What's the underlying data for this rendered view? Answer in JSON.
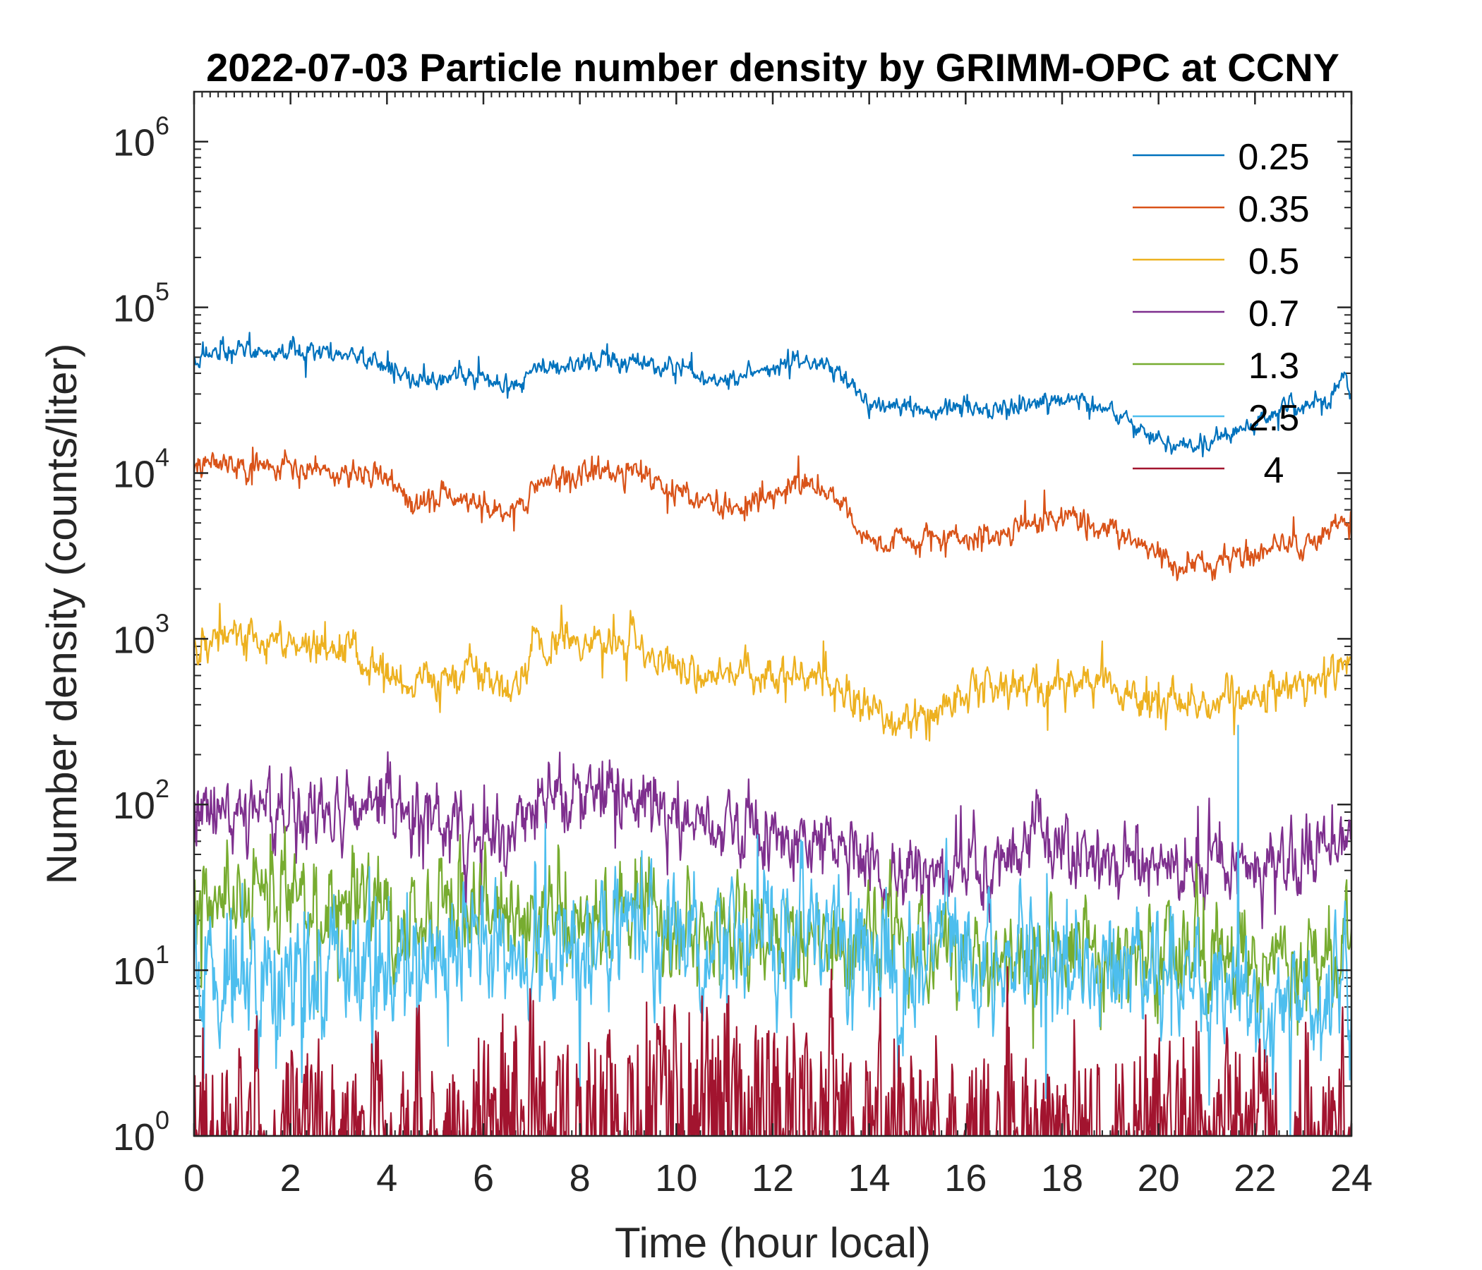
{
  "chart_data": {
    "type": "line",
    "title": "2022-07-03 Particle number density by GRIMM-OPC at CCNY",
    "xlabel": "Time (hour local)",
    "ylabel": "Number density (counts/liter)",
    "xlim": [
      0,
      24
    ],
    "ylim": [
      1,
      2000000
    ],
    "yscale": "log",
    "x_ticks": [
      "0",
      "2",
      "4",
      "6",
      "8",
      "10",
      "12",
      "14",
      "16",
      "18",
      "20",
      "22",
      "24"
    ],
    "y_ticks": [
      {
        "base": "10",
        "exp": "0"
      },
      {
        "base": "10",
        "exp": "1"
      },
      {
        "base": "10",
        "exp": "2"
      },
      {
        "base": "10",
        "exp": "3"
      },
      {
        "base": "10",
        "exp": "4"
      },
      {
        "base": "10",
        "exp": "5"
      },
      {
        "base": "10",
        "exp": "6"
      }
    ],
    "legend_position": "top-right",
    "series": [
      {
        "name": "0.25",
        "color": "#0072BD",
        "noise_dex": 0.03,
        "spike_dex": 0.1,
        "x": [
          0,
          0.5,
          1,
          2,
          3,
          3.8,
          4.5,
          5.5,
          6,
          6.5,
          6.9,
          7,
          7.5,
          8,
          8.5,
          9,
          10,
          10.5,
          11,
          12,
          12.5,
          13,
          13.5,
          14,
          15,
          16,
          17,
          18,
          19,
          19.5,
          20,
          20.5,
          21,
          21.5,
          22,
          22.5,
          23,
          23.5,
          23.8,
          24
        ],
        "y": [
          50000,
          54000,
          56000,
          53000,
          52000,
          48000,
          37000,
          38000,
          36000,
          33000,
          37000,
          42000,
          44000,
          46000,
          48000,
          47000,
          43000,
          40000,
          38000,
          42000,
          47000,
          45000,
          38000,
          26000,
          24000,
          24000,
          25000,
          28000,
          24000,
          20000,
          16000,
          14000,
          15000,
          17000,
          20000,
          24000,
          25000,
          28000,
          40000,
          28000
        ]
      },
      {
        "name": "0.35",
        "color": "#D95319",
        "noise_dex": 0.04,
        "spike_dex": 0.15,
        "x": [
          0,
          0.5,
          1,
          2,
          3,
          4,
          4.5,
          5.5,
          6,
          6.5,
          6.9,
          7,
          7.5,
          8,
          8.5,
          9,
          10,
          10.5,
          11,
          12,
          12.5,
          13,
          13.5,
          14,
          15,
          16,
          17,
          18,
          19,
          19.5,
          20,
          20.5,
          21,
          21.5,
          22,
          22.5,
          23,
          23.5,
          23.8,
          24
        ],
        "y": [
          11000,
          11500,
          11000,
          10500,
          10000,
          9500,
          6500,
          7000,
          6500,
          5500,
          6500,
          8500,
          9500,
          10000,
          11000,
          10500,
          8000,
          7000,
          6000,
          7000,
          8500,
          8000,
          6000,
          4000,
          4000,
          4000,
          4500,
          5500,
          4500,
          3800,
          3200,
          2800,
          2800,
          3000,
          3200,
          3800,
          3600,
          4000,
          5500,
          4000
        ]
      },
      {
        "name": "0.5",
        "color": "#EDB120",
        "noise_dex": 0.06,
        "spike_dex": 0.2,
        "x": [
          0,
          1,
          2,
          3,
          4,
          4.5,
          5,
          6,
          6.5,
          6.9,
          7,
          7.5,
          8,
          8.5,
          9,
          10,
          10.5,
          11,
          12,
          12.5,
          13,
          13.5,
          14,
          14.5,
          15,
          16,
          17,
          18,
          19,
          20,
          20.5,
          21,
          21.5,
          22,
          22.5,
          23,
          23.5,
          24
        ],
        "y": [
          1000,
          1050,
          950,
          900,
          700,
          500,
          550,
          650,
          500,
          550,
          850,
          900,
          950,
          1050,
          950,
          700,
          600,
          550,
          600,
          650,
          600,
          500,
          400,
          320,
          340,
          450,
          500,
          550,
          500,
          450,
          370,
          390,
          420,
          450,
          500,
          480,
          600,
          700
        ]
      },
      {
        "name": "0.7",
        "color": "#7E2F8E",
        "noise_dex": 0.12,
        "spike_dex": 0.35,
        "x": [
          0,
          2,
          4,
          5,
          6,
          6.5,
          7,
          8,
          9,
          10,
          11,
          12,
          13,
          14,
          15,
          16,
          17,
          18,
          19,
          20,
          21,
          22,
          23,
          24
        ],
        "y": [
          100,
          95,
          90,
          75,
          70,
          65,
          95,
          110,
          100,
          80,
          75,
          70,
          60,
          45,
          42,
          45,
          48,
          55,
          50,
          42,
          40,
          48,
          55,
          80
        ]
      },
      {
        "name": "1.3",
        "color": "#77AC30",
        "noise_dex": 0.16,
        "spike_dex": 0.35,
        "x": [
          0,
          2,
          4,
          6,
          8,
          10,
          12,
          14,
          16,
          18,
          20,
          22,
          24
        ],
        "y": [
          28,
          28,
          26,
          22,
          22,
          18,
          16,
          14,
          12,
          12,
          11,
          12,
          12
        ]
      },
      {
        "name": "2.5",
        "color": "#4DBEEE",
        "noise_dex": 0.2,
        "spike_dex": 0.5,
        "x": [
          0,
          2,
          4,
          6,
          8,
          10,
          12,
          14,
          16,
          18,
          20,
          22,
          24
        ],
        "y": [
          10,
          11,
          11,
          13,
          15,
          17,
          16,
          13,
          11,
          11,
          9,
          7,
          7
        ]
      },
      {
        "name": "4",
        "color": "#A2142F",
        "noise_dex": 0.25,
        "spike_dex": 0.35,
        "x": [
          0,
          2,
          4,
          6,
          8,
          10,
          12,
          14,
          16,
          18,
          20,
          22,
          24
        ],
        "y": [
          1.5,
          1.5,
          1.4,
          1.8,
          2,
          2.6,
          2.6,
          2,
          1.6,
          1.6,
          1.5,
          1.4,
          1.3
        ]
      }
    ],
    "annotations": [
      {
        "series": "2.5",
        "x": 21.65,
        "y": 300,
        "note": "isolated spike"
      }
    ]
  }
}
